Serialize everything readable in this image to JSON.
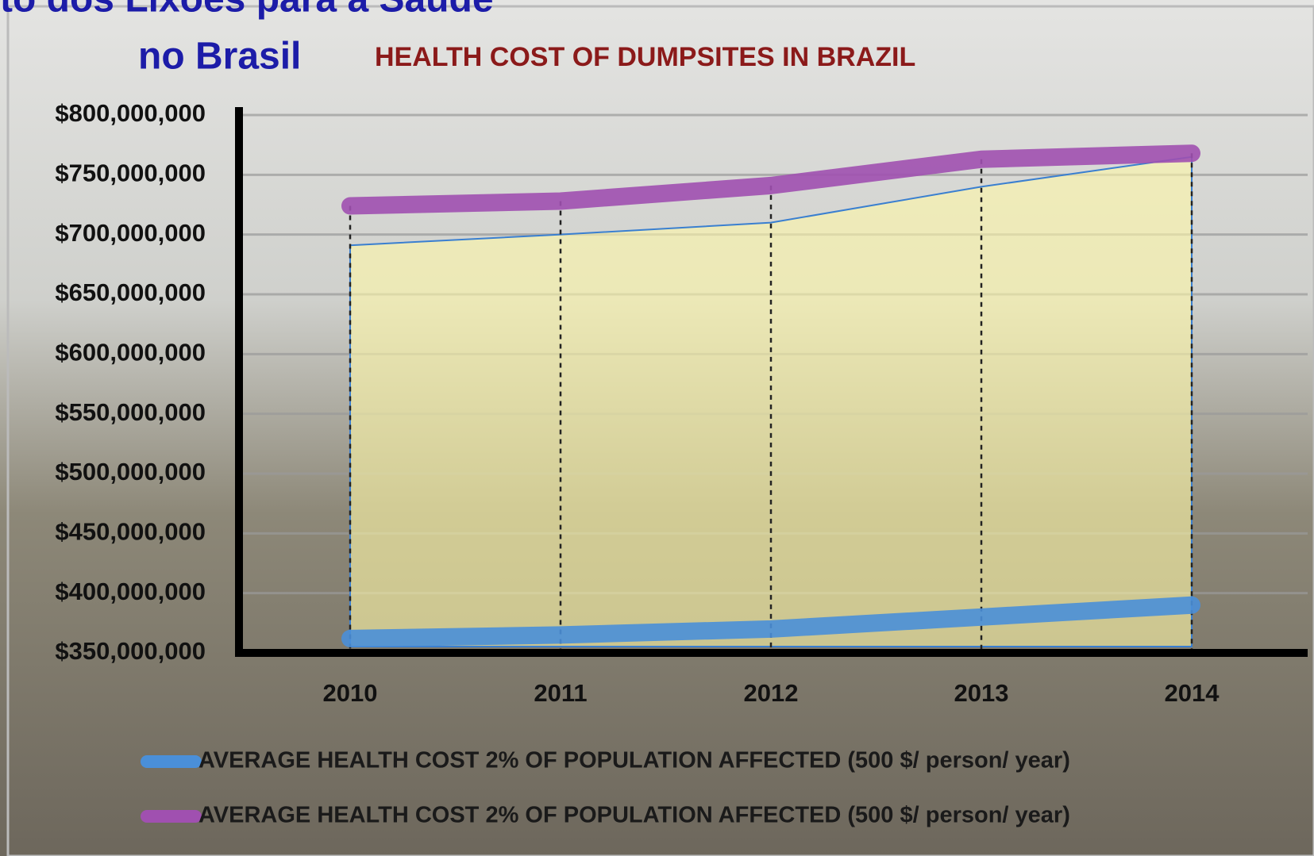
{
  "slide_title": [
    "to dos Lixões para a Saúde",
    "no Brasil"
  ],
  "chart_data": {
    "type": "line",
    "title": "HEALTH COST OF DUMPSITES IN BRAZIL",
    "categories": [
      "2010",
      "2011",
      "2012",
      "2013",
      "2014"
    ],
    "series": [
      {
        "name": "AVERAGE HEALTH COST 2% OF POPULATION AFFECTED (500 $/ person/ year)",
        "color": "#4a8fd8",
        "values": [
          362000000,
          365000000,
          370000000,
          380000000,
          390000000
        ]
      },
      {
        "name": "AVERAGE HEALTH COST 2% OF POPULATION AFFECTED (500 $/ person/ year)",
        "color": "#a050b0",
        "values": [
          724000000,
          728000000,
          741000000,
          763000000,
          768000000
        ]
      }
    ],
    "area": {
      "color": "#fff8a8",
      "values": [
        691000000,
        700000000,
        710000000,
        740000000,
        765000000
      ]
    },
    "ylim": [
      350000000,
      800000000
    ],
    "yticks": [
      {
        "value": 350000000,
        "label": "$350,000,000"
      },
      {
        "value": 400000000,
        "label": "$400,000,000"
      },
      {
        "value": 450000000,
        "label": "$450,000,000"
      },
      {
        "value": 500000000,
        "label": "$500,000,000"
      },
      {
        "value": 550000000,
        "label": "$550,000,000"
      },
      {
        "value": 600000000,
        "label": "$600,000,000"
      },
      {
        "value": 650000000,
        "label": "$650,000,000"
      },
      {
        "value": 700000000,
        "label": "$700,000,000"
      },
      {
        "value": 750000000,
        "label": "$750,000,000"
      },
      {
        "value": 800000000,
        "label": "$800,000,000"
      }
    ],
    "grid": true
  }
}
